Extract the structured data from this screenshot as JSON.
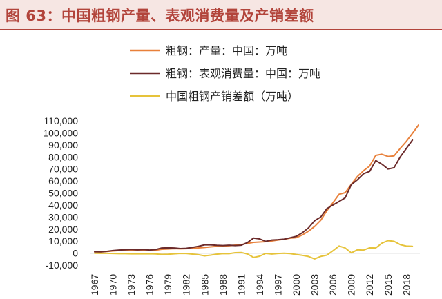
{
  "figure": {
    "title": "图 63：中国粗钢产量、表观消费量及产销差额"
  },
  "chart_data": {
    "type": "line",
    "title": "图 63：中国粗钢产量、表观消费量及产销差额",
    "xlabel": "",
    "ylabel": "",
    "ylim": [
      -10000,
      110000
    ],
    "ytick_labels": [
      "-10,000",
      "0",
      "10,000",
      "20,000",
      "30,000",
      "40,000",
      "50,000",
      "60,000",
      "70,000",
      "80,000",
      "90,000",
      "100,000",
      "110,000"
    ],
    "ytick_values": [
      -10000,
      0,
      10000,
      20000,
      30000,
      40000,
      50000,
      60000,
      70000,
      80000,
      90000,
      100000,
      110000
    ],
    "xtick_labels": [
      "1967",
      "1970",
      "1973",
      "1976",
      "1979",
      "1982",
      "1985",
      "1988",
      "1991",
      "1994",
      "1997",
      "2000",
      "2003",
      "2006",
      "2009",
      "2012",
      "2015",
      "2018"
    ],
    "x": [
      1967,
      1968,
      1969,
      1970,
      1971,
      1972,
      1973,
      1974,
      1975,
      1976,
      1977,
      1978,
      1979,
      1980,
      1981,
      1982,
      1983,
      1984,
      1985,
      1986,
      1987,
      1988,
      1989,
      1990,
      1991,
      1992,
      1993,
      1994,
      1995,
      1996,
      1997,
      1998,
      1999,
      2000,
      2001,
      2002,
      2003,
      2004,
      2005,
      2006,
      2007,
      2008,
      2009,
      2010,
      2011,
      2012,
      2013,
      2014,
      2015,
      2016,
      2017,
      2018,
      2019,
      2020
    ],
    "series": [
      {
        "name": "粗钢：产量：中国：万吨",
        "color": "#e8803a",
        "values": [
          1030,
          904,
          1333,
          1779,
          2132,
          2338,
          2522,
          2112,
          2390,
          2046,
          2374,
          3178,
          3448,
          3712,
          3560,
          3716,
          4002,
          4347,
          4679,
          5221,
          5628,
          5943,
          6159,
          6635,
          7100,
          8094,
          8956,
          9261,
          9536,
          10124,
          10894,
          11559,
          12426,
          12850,
          15163,
          18237,
          22234,
          27280,
          35324,
          41915,
          48929,
          50306,
          57218,
          63723,
          68528,
          72388,
          81314,
          82231,
          80383,
          80837,
          87074,
          92826,
          99634,
          106477
        ]
      },
      {
        "name": "粗钢：表观消费量：中国：万吨",
        "color": "#6b2a2a",
        "values": [
          1100,
          1100,
          1500,
          2100,
          2600,
          2800,
          3100,
          2700,
          3000,
          2600,
          3000,
          4300,
          4400,
          4300,
          3800,
          4000,
          4800,
          5700,
          6900,
          6900,
          6500,
          6300,
          6600,
          6300,
          6600,
          8800,
          12500,
          11800,
          9800,
          10900,
          11200,
          11600,
          12800,
          14000,
          17000,
          21000,
          27000,
          30000,
          37000,
          40000,
          43000,
          46000,
          57000,
          61000,
          66000,
          68000,
          77000,
          74000,
          70000,
          71000,
          80000,
          87000,
          94000,
          null
        ]
      },
      {
        "name": "中国粗钢产销差额（万吨）",
        "color": "#e6c33a",
        "values": [
          -70,
          -196,
          -167,
          -321,
          -468,
          -462,
          -578,
          -588,
          -610,
          -554,
          -626,
          -1122,
          -952,
          -588,
          -240,
          -284,
          -798,
          -1353,
          -2221,
          -1679,
          -872,
          -357,
          -441,
          335,
          500,
          -706,
          -3544,
          -2539,
          -264,
          -776,
          -306,
          -41,
          -374,
          -1150,
          -1837,
          -2763,
          -4766,
          -2720,
          -1676,
          1915,
          5929,
          4306,
          218,
          2723,
          2528,
          4388,
          4314,
          8231,
          10383,
          9837,
          7074,
          5826,
          5634,
          null
        ]
      }
    ]
  }
}
